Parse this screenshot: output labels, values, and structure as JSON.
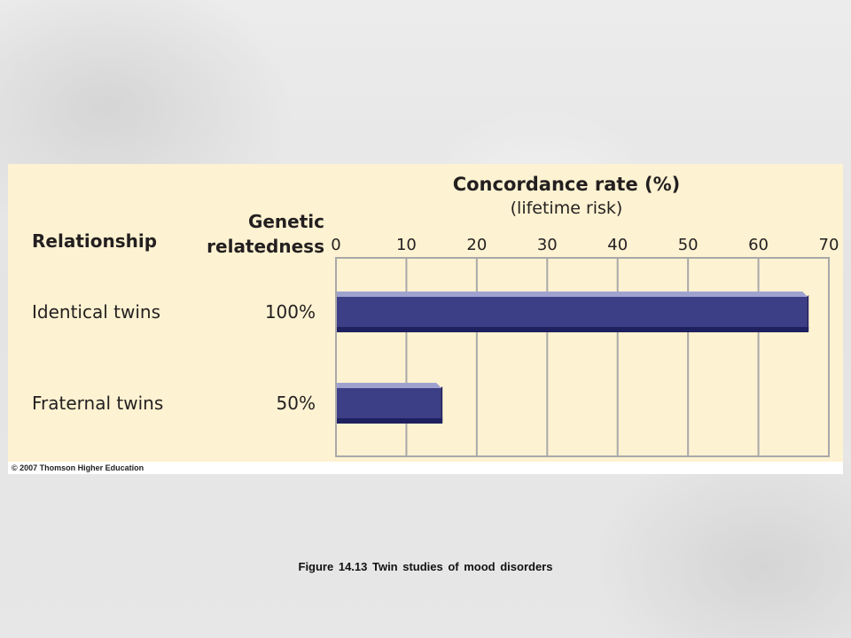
{
  "caption": "Figure 14.13   Twin studies of mood disorders",
  "copyright": "© 2007 Thomson Higher Education",
  "chart_data": {
    "type": "bar",
    "orientation": "horizontal",
    "title": "Concordance rate (%)",
    "subtitle": "(lifetime risk)",
    "col_header_left": "Relationship",
    "col_header_mid_line1": "Genetic",
    "col_header_mid_line2": "relatedness",
    "categories": [
      "Identical twins",
      "Fraternal twins"
    ],
    "relatedness": [
      "100%",
      "50%"
    ],
    "values": [
      67,
      15
    ],
    "xlim": [
      0,
      70
    ],
    "xticks": [
      0,
      10,
      20,
      30,
      40,
      50,
      60,
      70
    ],
    "tick_labels": [
      "0",
      "10",
      "20",
      "30",
      "40",
      "50",
      "60",
      "70"
    ],
    "grid": true,
    "bar_color": "#3d3f86",
    "bar_highlight": "#9fa2cf",
    "bar_shadow": "#1f2060",
    "panel_color": "#fdf2d1",
    "grid_color": "#a9a9a9"
  }
}
